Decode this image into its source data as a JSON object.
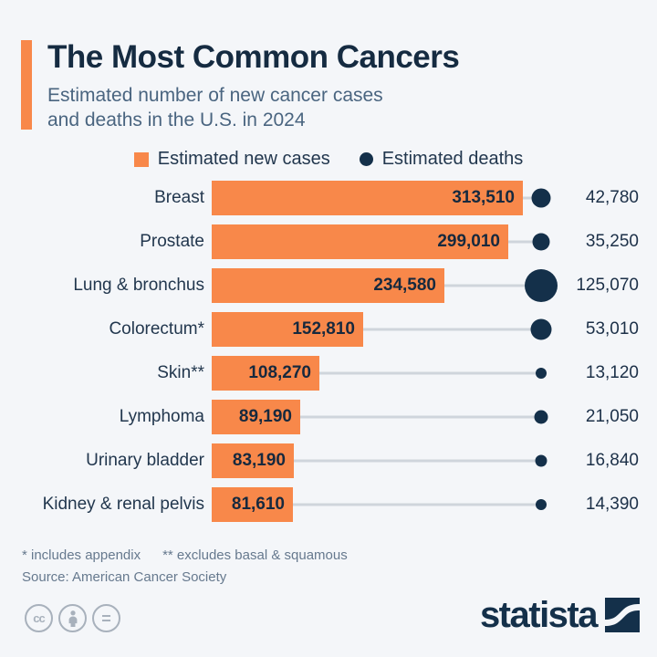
{
  "header": {
    "title": "The Most Common Cancers",
    "subtitle_line1": "Estimated number of new cancer cases",
    "subtitle_line2": "and deaths in the U.S. in 2024"
  },
  "legend": {
    "new_cases_label": "Estimated new cases",
    "deaths_label": "Estimated deaths"
  },
  "chart_data": {
    "type": "bar",
    "orientation": "horizontal",
    "title": "The Most Common Cancers",
    "subtitle": "Estimated number of new cancer cases and deaths in the U.S. in 2024",
    "categories": [
      "Breast",
      "Prostate",
      "Lung & bronchus",
      "Colorectum*",
      "Skin**",
      "Lymphoma",
      "Urinary bladder",
      "Kidney & renal pelvis"
    ],
    "series": [
      {
        "name": "Estimated new cases",
        "representation": "bar-length",
        "color": "#F8884A",
        "values": [
          313510,
          299010,
          234580,
          152810,
          108270,
          89190,
          83190,
          81610
        ],
        "labels": [
          "313,510",
          "299,010",
          "234,580",
          "152,810",
          "108,270",
          "89,190",
          "83,190",
          "81,610"
        ]
      },
      {
        "name": "Estimated deaths",
        "representation": "dot-size",
        "color": "#14304A",
        "values": [
          42780,
          35250,
          125070,
          53010,
          13120,
          21050,
          16840,
          14390
        ],
        "labels": [
          "42,780",
          "35,250",
          "125,070",
          "53,010",
          "13,120",
          "21,050",
          "16,840",
          "14,390"
        ]
      }
    ],
    "xlim": [
      0,
      313510
    ],
    "grid": false,
    "legend_position": "top",
    "value_labels_shown": true
  },
  "footer": {
    "footnote1": "* includes appendix",
    "footnote2": "** excludes basal & squamous",
    "source": "Source: American Cancer Society",
    "cc_label": "cc",
    "cc_equals": "=",
    "brand": "statista"
  },
  "colors": {
    "background": "#F4F6F9",
    "accent_orange": "#F8884A",
    "dot_navy": "#14304A",
    "title_text": "#152B41",
    "subtitle_text": "#4A6580",
    "footnote_text": "#66798E",
    "connector_gray": "#CFD5DC"
  }
}
